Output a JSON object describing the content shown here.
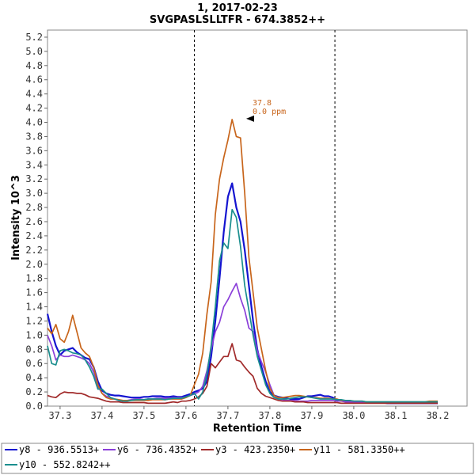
{
  "chart_data": {
    "type": "line",
    "title": "1, 2017-02-23",
    "subtitle": "SVGPASLSLLTFR - 674.3852++",
    "xlabel": "Retention Time",
    "ylabel": "Intensity 10^3",
    "xlim": [
      37.27,
      38.27
    ],
    "ylim": [
      0,
      5.3
    ],
    "x_ticks": [
      "37.3",
      "37.4",
      "37.5",
      "37.6",
      "37.7",
      "37.8",
      "37.9",
      "38.0",
      "38.1",
      "38.2"
    ],
    "y_ticks": [
      "0.0",
      "0.2",
      "0.4",
      "0.6",
      "0.8",
      "1.0",
      "1.2",
      "1.4",
      "1.6",
      "1.8",
      "2.0",
      "2.2",
      "2.4",
      "2.6",
      "2.8",
      "3.0",
      "3.2",
      "3.4",
      "3.6",
      "3.8",
      "4.0",
      "4.2",
      "4.4",
      "4.6",
      "4.8",
      "5.0",
      "5.2"
    ],
    "integration_bounds": [
      37.62,
      37.955
    ],
    "annotation": {
      "x": 37.77,
      "y": 4.04,
      "rt": "37.8",
      "ppm": "0.0 ppm",
      "color": "#c8651b"
    },
    "legend_placement": "bottom",
    "x": [
      37.27,
      37.28,
      37.29,
      37.3,
      37.31,
      37.32,
      37.33,
      37.34,
      37.35,
      37.36,
      37.37,
      37.38,
      37.39,
      37.4,
      37.41,
      37.42,
      37.43,
      37.44,
      37.45,
      37.46,
      37.47,
      37.48,
      37.49,
      37.5,
      37.51,
      37.52,
      37.53,
      37.54,
      37.55,
      37.56,
      37.57,
      37.58,
      37.59,
      37.6,
      37.61,
      37.62,
      37.63,
      37.64,
      37.65,
      37.66,
      37.67,
      37.68,
      37.69,
      37.7,
      37.71,
      37.72,
      37.73,
      37.74,
      37.75,
      37.76,
      37.77,
      37.78,
      37.79,
      37.8,
      37.81,
      37.82,
      37.83,
      37.84,
      37.85,
      37.86,
      37.87,
      37.88,
      37.89,
      37.9,
      37.91,
      37.92,
      37.93,
      37.94,
      37.95,
      37.96,
      37.97,
      37.98,
      37.99,
      38.0,
      38.01,
      38.02,
      38.03,
      38.04,
      38.05,
      38.06,
      38.07,
      38.08,
      38.09,
      38.1,
      38.11,
      38.12,
      38.13,
      38.14,
      38.15,
      38.16,
      38.17,
      38.18,
      38.19,
      38.2
    ],
    "series": [
      {
        "name": "y8 - 936.5513+",
        "color": "#1414d0",
        "values": [
          1.3,
          1.05,
          0.85,
          0.72,
          0.78,
          0.8,
          0.82,
          0.76,
          0.72,
          0.68,
          0.66,
          0.55,
          0.35,
          0.22,
          0.18,
          0.16,
          0.15,
          0.15,
          0.14,
          0.13,
          0.12,
          0.12,
          0.12,
          0.13,
          0.13,
          0.14,
          0.14,
          0.14,
          0.13,
          0.13,
          0.14,
          0.13,
          0.13,
          0.15,
          0.17,
          0.2,
          0.22,
          0.25,
          0.35,
          0.7,
          1.2,
          1.8,
          2.45,
          2.95,
          3.14,
          2.8,
          2.6,
          2.2,
          1.7,
          1.2,
          0.8,
          0.55,
          0.35,
          0.2,
          0.15,
          0.13,
          0.12,
          0.11,
          0.1,
          0.1,
          0.1,
          0.12,
          0.14,
          0.14,
          0.15,
          0.16,
          0.14,
          0.14,
          0.12,
          0.08,
          0.08,
          0.07,
          0.06,
          0.06,
          0.05,
          0.05,
          0.05,
          0.05,
          0.05,
          0.05,
          0.05,
          0.04,
          0.04,
          0.04,
          0.04,
          0.04,
          0.04,
          0.04,
          0.04,
          0.04,
          0.04,
          0.04,
          0.04,
          0.04
        ]
      },
      {
        "name": "y6 - 736.4352+",
        "color": "#8b3fd9",
        "values": [
          1.0,
          0.85,
          0.65,
          0.72,
          0.7,
          0.7,
          0.72,
          0.7,
          0.68,
          0.65,
          0.6,
          0.48,
          0.28,
          0.18,
          0.14,
          0.12,
          0.1,
          0.08,
          0.07,
          0.08,
          0.09,
          0.1,
          0.1,
          0.09,
          0.1,
          0.1,
          0.11,
          0.11,
          0.11,
          0.11,
          0.12,
          0.12,
          0.12,
          0.13,
          0.15,
          0.17,
          0.2,
          0.28,
          0.5,
          0.8,
          1.05,
          1.18,
          1.4,
          1.5,
          1.62,
          1.73,
          1.52,
          1.35,
          1.1,
          1.05,
          0.78,
          0.62,
          0.48,
          0.3,
          0.15,
          0.1,
          0.09,
          0.08,
          0.08,
          0.08,
          0.07,
          0.07,
          0.07,
          0.08,
          0.08,
          0.08,
          0.08,
          0.08,
          0.08,
          0.07,
          0.07,
          0.06,
          0.06,
          0.06,
          0.06,
          0.05,
          0.05,
          0.05,
          0.05,
          0.05,
          0.05,
          0.05,
          0.05,
          0.05,
          0.05,
          0.05,
          0.05,
          0.05,
          0.05,
          0.05,
          0.05,
          0.05,
          0.05,
          0.05
        ]
      },
      {
        "name": "y3 - 423.2350+",
        "color": "#a12a2a",
        "values": [
          0.15,
          0.13,
          0.12,
          0.17,
          0.2,
          0.19,
          0.19,
          0.18,
          0.18,
          0.16,
          0.13,
          0.12,
          0.11,
          0.09,
          0.07,
          0.06,
          0.06,
          0.06,
          0.05,
          0.05,
          0.05,
          0.05,
          0.05,
          0.05,
          0.04,
          0.04,
          0.04,
          0.04,
          0.04,
          0.05,
          0.06,
          0.05,
          0.07,
          0.07,
          0.08,
          0.1,
          0.13,
          0.18,
          0.28,
          0.6,
          0.54,
          0.62,
          0.7,
          0.7,
          0.88,
          0.65,
          0.63,
          0.55,
          0.48,
          0.42,
          0.25,
          0.18,
          0.14,
          0.12,
          0.1,
          0.08,
          0.07,
          0.07,
          0.07,
          0.06,
          0.06,
          0.06,
          0.05,
          0.05,
          0.05,
          0.05,
          0.05,
          0.05,
          0.05,
          0.05,
          0.04,
          0.04,
          0.04,
          0.04,
          0.04,
          0.04,
          0.04,
          0.04,
          0.04,
          0.04,
          0.04,
          0.04,
          0.04,
          0.04,
          0.04,
          0.04,
          0.04,
          0.04,
          0.04,
          0.04,
          0.04,
          0.04,
          0.04,
          0.04
        ]
      },
      {
        "name": "y11 - 581.3350++",
        "color": "#c8651b",
        "values": [
          1.1,
          1.02,
          1.15,
          0.95,
          0.9,
          1.05,
          1.28,
          1.05,
          0.82,
          0.75,
          0.7,
          0.55,
          0.3,
          0.18,
          0.12,
          0.1,
          0.1,
          0.09,
          0.08,
          0.08,
          0.08,
          0.08,
          0.08,
          0.08,
          0.08,
          0.09,
          0.09,
          0.09,
          0.09,
          0.1,
          0.1,
          0.1,
          0.1,
          0.12,
          0.15,
          0.3,
          0.45,
          0.75,
          1.3,
          1.75,
          2.7,
          3.2,
          3.5,
          3.75,
          4.04,
          3.8,
          3.78,
          3.0,
          2.1,
          1.6,
          1.1,
          0.8,
          0.5,
          0.25,
          0.15,
          0.12,
          0.12,
          0.13,
          0.14,
          0.15,
          0.15,
          0.14,
          0.13,
          0.12,
          0.12,
          0.11,
          0.11,
          0.11,
          0.1,
          0.1,
          0.08,
          0.08,
          0.08,
          0.07,
          0.07,
          0.07,
          0.06,
          0.06,
          0.06,
          0.06,
          0.06,
          0.06,
          0.06,
          0.06,
          0.06,
          0.06,
          0.06,
          0.06,
          0.06,
          0.06,
          0.06,
          0.07,
          0.07,
          0.07
        ]
      },
      {
        "name": "y10 - 552.8242++",
        "color": "#1a8e8e",
        "values": [
          0.85,
          0.6,
          0.58,
          0.78,
          0.8,
          0.78,
          0.75,
          0.74,
          0.72,
          0.65,
          0.55,
          0.42,
          0.24,
          0.24,
          0.18,
          0.12,
          0.1,
          0.08,
          0.07,
          0.07,
          0.08,
          0.09,
          0.09,
          0.09,
          0.1,
          0.1,
          0.1,
          0.1,
          0.09,
          0.1,
          0.11,
          0.11,
          0.11,
          0.13,
          0.15,
          0.18,
          0.1,
          0.2,
          0.45,
          0.85,
          1.4,
          2.05,
          2.3,
          2.22,
          2.77,
          2.66,
          2.25,
          1.7,
          1.35,
          1.0,
          0.7,
          0.5,
          0.3,
          0.18,
          0.12,
          0.1,
          0.1,
          0.1,
          0.11,
          0.12,
          0.13,
          0.13,
          0.13,
          0.12,
          0.11,
          0.1,
          0.1,
          0.1,
          0.1,
          0.09,
          0.09,
          0.08,
          0.08,
          0.07,
          0.07,
          0.07,
          0.06,
          0.06,
          0.06,
          0.06,
          0.06,
          0.06,
          0.06,
          0.06,
          0.06,
          0.06,
          0.06,
          0.06,
          0.06,
          0.06,
          0.06,
          0.06,
          0.06,
          0.06
        ]
      }
    ]
  }
}
